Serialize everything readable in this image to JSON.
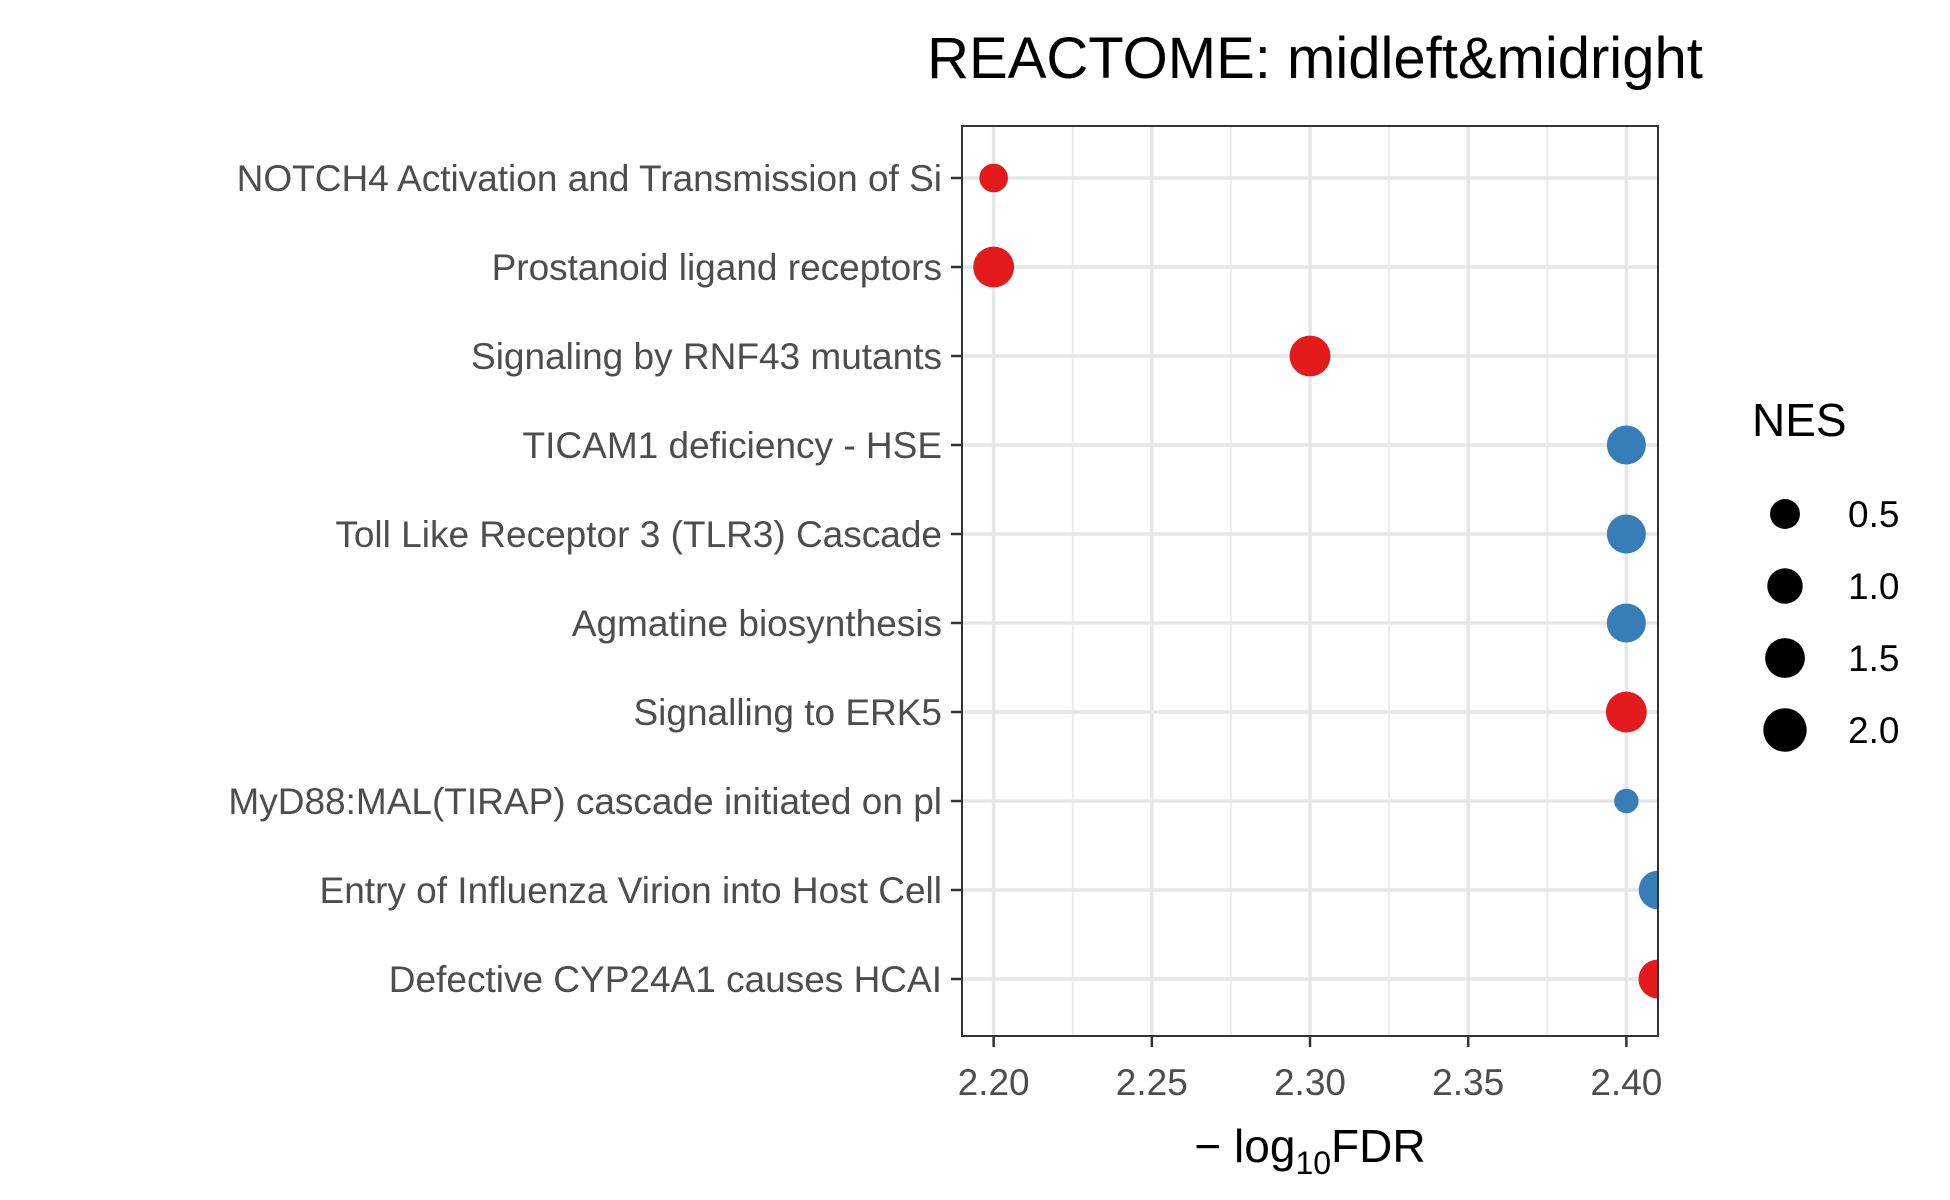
{
  "chart_data": {
    "type": "scatter",
    "title": "REACTOME: midleft&midright",
    "xlabel": {
      "prefix": "− log",
      "subscript": "10",
      "suffix": "FDR"
    },
    "ylabel": "",
    "xlim": [
      2.19,
      2.41
    ],
    "xticks": [
      2.2,
      2.25,
      2.3,
      2.35,
      2.4
    ],
    "xtick_labels": [
      "2.20",
      "2.25",
      "2.30",
      "2.35",
      "2.40"
    ],
    "grid": true,
    "legend": {
      "title": "NES",
      "position": "right",
      "entries": [
        {
          "label": "0.5",
          "value": 0.5
        },
        {
          "label": "1.0",
          "value": 1.0
        },
        {
          "label": "1.5",
          "value": 1.5
        },
        {
          "label": "2.0",
          "value": 2.0
        }
      ]
    },
    "colors": {
      "positive": "#E41A1C",
      "negative": "#377EB8"
    },
    "points": [
      {
        "label": "NOTCH4 Activation and Transmission of Si",
        "x": 2.2,
        "nes": 0.45,
        "color": "#E41A1C"
      },
      {
        "label": "Prostanoid ligand receptors",
        "x": 2.2,
        "nes": 1.75,
        "color": "#E41A1C"
      },
      {
        "label": "Signaling by RNF43 mutants",
        "x": 2.3,
        "nes": 1.75,
        "color": "#E41A1C"
      },
      {
        "label": "TICAM1 deficiency - HSE",
        "x": 2.4,
        "nes": 1.5,
        "color": "#377EB8"
      },
      {
        "label": "Toll Like Receptor 3 (TLR3) Cascade",
        "x": 2.4,
        "nes": 1.5,
        "color": "#377EB8"
      },
      {
        "label": "Agmatine biosynthesis",
        "x": 2.4,
        "nes": 1.5,
        "color": "#377EB8"
      },
      {
        "label": "Signalling to ERK5",
        "x": 2.4,
        "nes": 1.75,
        "color": "#E41A1C"
      },
      {
        "label": "MyD88:MAL(TIRAP) cascade initiated on pl",
        "x": 2.4,
        "nes": 0.2,
        "color": "#377EB8"
      },
      {
        "label": "Entry of Influenza Virion into Host Cell",
        "x": 2.41,
        "nes": 1.45,
        "color": "#377EB8"
      },
      {
        "label": "Defective CYP24A1 causes HCAI",
        "x": 2.41,
        "nes": 1.5,
        "color": "#E41A1C"
      }
    ]
  }
}
